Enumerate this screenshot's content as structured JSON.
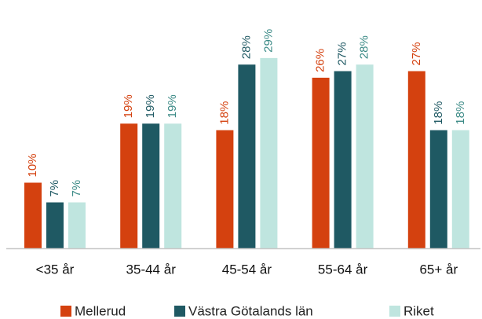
{
  "chart_data": {
    "type": "bar",
    "categories": [
      "<35 år",
      "35-44 år",
      "45-54 år",
      "55-64 år",
      "65+ år"
    ],
    "series": [
      {
        "name": "Mellerud",
        "color": "#d4410f",
        "label_color": "#d4410f",
        "values": [
          10,
          19,
          18,
          26,
          27
        ],
        "value_labels": [
          "10%",
          "19%",
          "18%",
          "26%",
          "27%"
        ]
      },
      {
        "name": "Västra Götalands län",
        "color": "#1f5963",
        "label_color": "#1f5963",
        "values": [
          7,
          19,
          28,
          27,
          18
        ],
        "value_labels": [
          "7%",
          "19%",
          "28%",
          "27%",
          "18%"
        ]
      },
      {
        "name": "Riket",
        "color": "#bfe5df",
        "label_color": "#3b8a86",
        "values": [
          7,
          19,
          29,
          28,
          18
        ],
        "value_labels": [
          "7%",
          "19%",
          "29%",
          "28%",
          "18%"
        ]
      }
    ],
    "legend": "bottom"
  }
}
